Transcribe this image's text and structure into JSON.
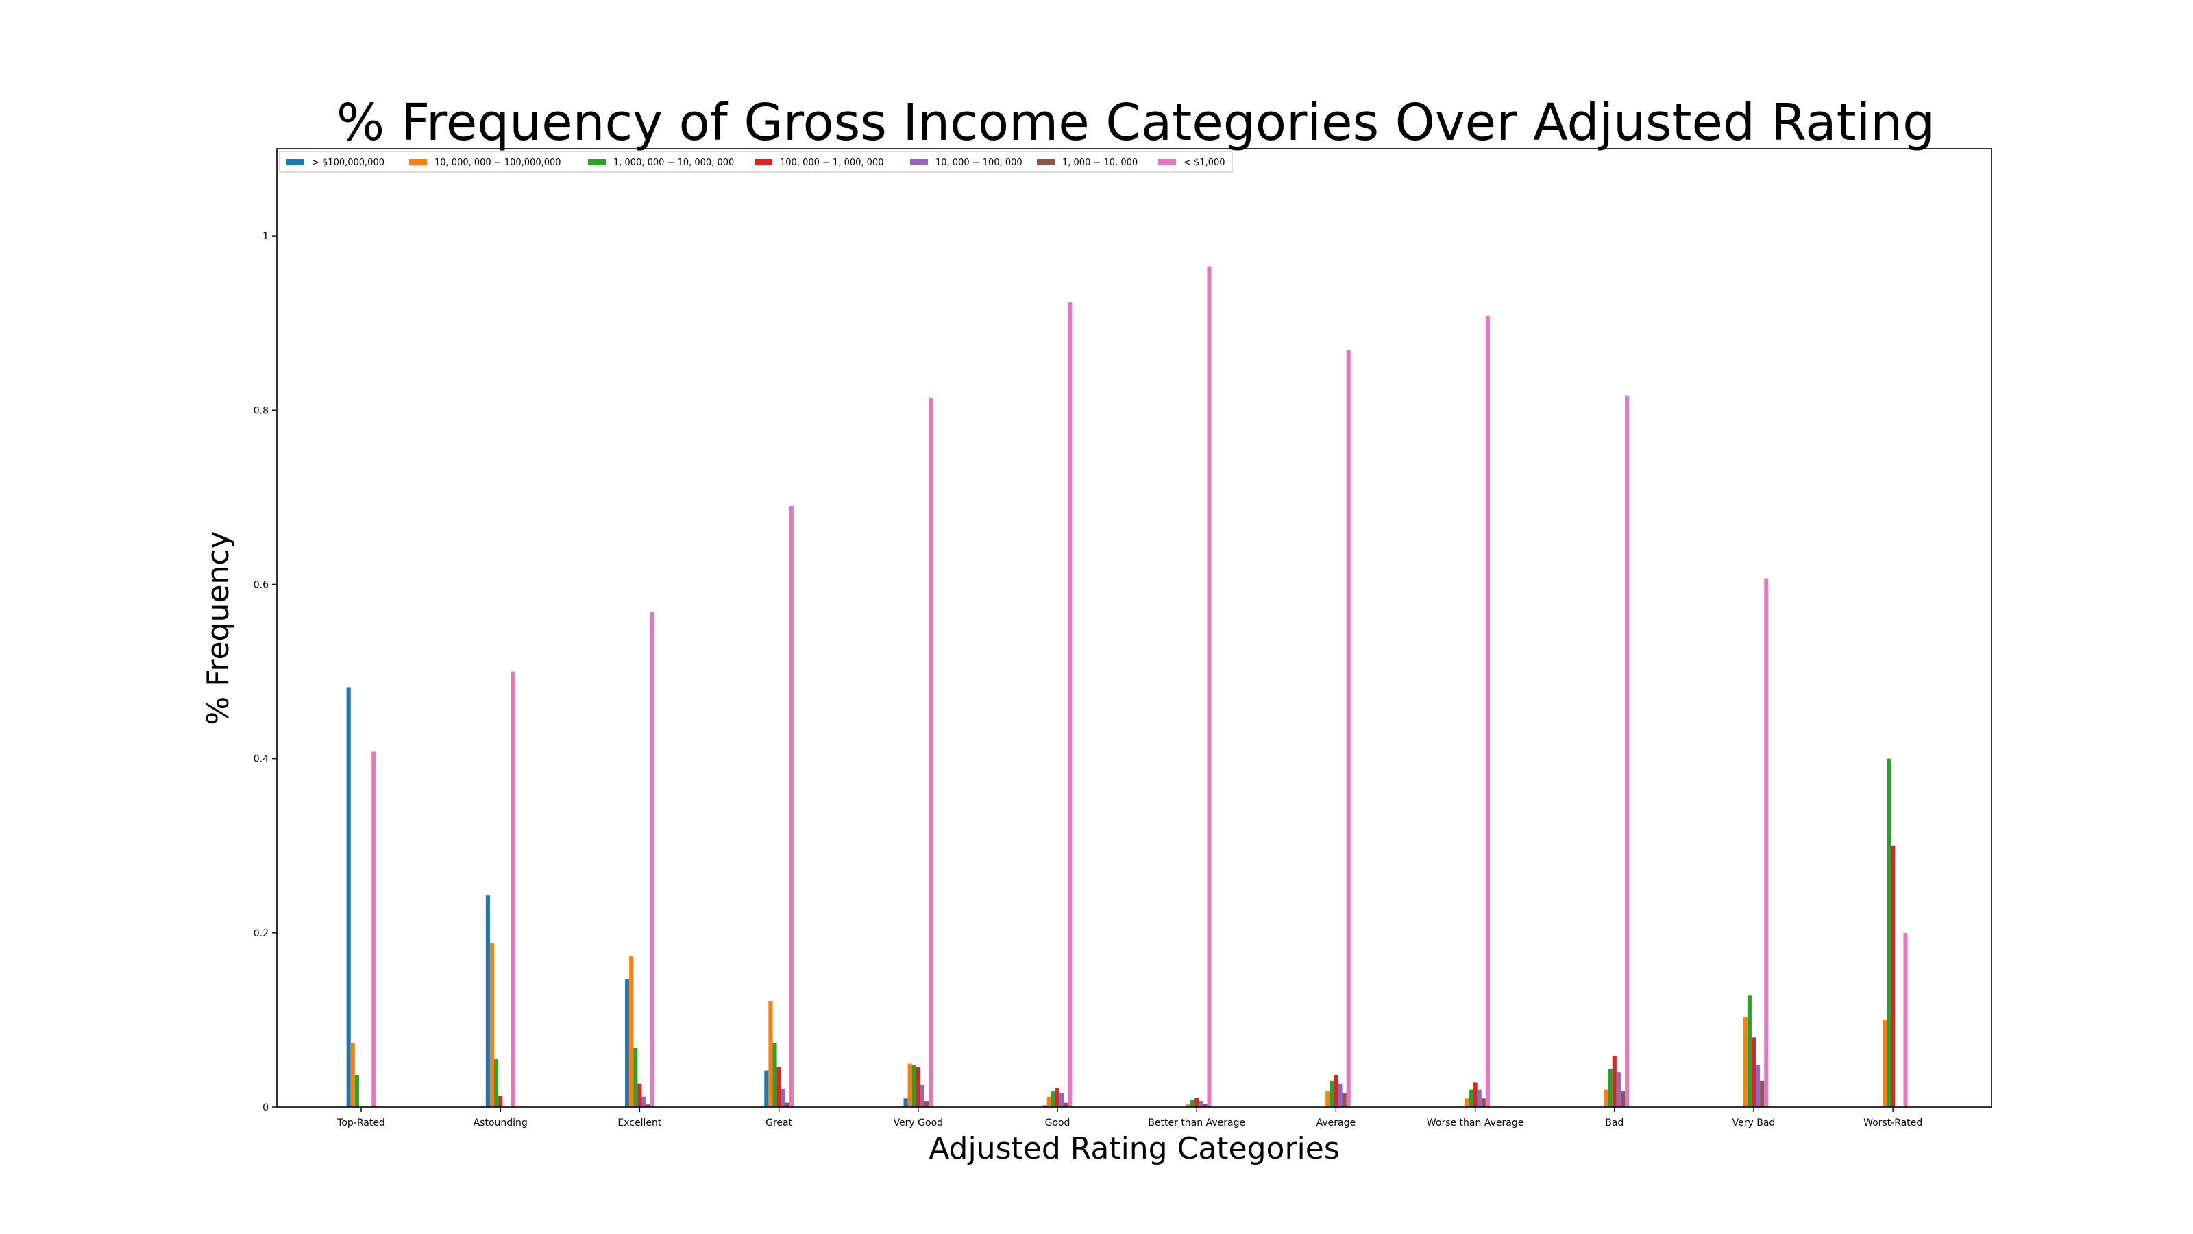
{
  "chart_data": {
    "type": "bar",
    "title": "% Frequency of Gross Income Categories Over Adjusted Rating",
    "xlabel": "Adjusted Rating Categories",
    "ylabel": "% Frequency",
    "ylim": [
      0,
      1.1
    ],
    "yticks": [
      {
        "value": 0,
        "label": "0"
      },
      {
        "value": 0.2,
        "label": "0.2"
      },
      {
        "value": 0.4,
        "label": "0.4"
      },
      {
        "value": 0.6,
        "label": "0.6"
      },
      {
        "value": 0.8,
        "label": "0.8"
      },
      {
        "value": 1,
        "label": "1"
      }
    ],
    "grid": false,
    "legend_position": "top-left",
    "categories": [
      "Top-Rated",
      "Astounding",
      "Excellent",
      "Great",
      "Very Good",
      "Good",
      "Better than Average",
      "Average",
      "Worse than Average",
      "Bad",
      "Very Bad",
      "Worst-Rated"
    ],
    "series": [
      {
        "name": "> $100,000,000",
        "color": "#1f77b4",
        "values": [
          0.482,
          0.243,
          0.147,
          0.042,
          0.01,
          0.002,
          0.0,
          0.0,
          0.0,
          0.0,
          0.0,
          0.0
        ]
      },
      {
        "name": "10, 000, 000 − 100,000,000",
        "color": "#ff7f0e",
        "values": [
          0.074,
          0.188,
          0.173,
          0.122,
          0.05,
          0.012,
          0.003,
          0.018,
          0.01,
          0.02,
          0.103,
          0.1
        ]
      },
      {
        "name": "1, 000, 000 − 10, 000, 000",
        "color": "#2ca02c",
        "values": [
          0.037,
          0.055,
          0.068,
          0.074,
          0.048,
          0.018,
          0.008,
          0.03,
          0.02,
          0.044,
          0.128,
          0.4
        ]
      },
      {
        "name": "100, 000 − 1, 000, 000",
        "color": "#d62728",
        "values": [
          0.0,
          0.013,
          0.027,
          0.046,
          0.046,
          0.022,
          0.011,
          0.037,
          0.028,
          0.059,
          0.08,
          0.3
        ]
      },
      {
        "name": "10, 000 − 100, 000",
        "color": "#9467bd",
        "values": [
          0.0,
          0.0,
          0.012,
          0.021,
          0.026,
          0.016,
          0.007,
          0.027,
          0.02,
          0.04,
          0.048,
          0.0
        ]
      },
      {
        "name": "1, 000 − 10, 000",
        "color": "#8c564b",
        "values": [
          0.0,
          0.0,
          0.003,
          0.005,
          0.007,
          0.005,
          0.004,
          0.016,
          0.01,
          0.018,
          0.03,
          0.0
        ]
      },
      {
        "name": "< $1,000",
        "color": "#e377c2",
        "values": [
          0.408,
          0.5,
          0.569,
          0.69,
          0.814,
          0.924,
          0.965,
          0.869,
          0.908,
          0.817,
          0.607,
          0.2
        ]
      }
    ]
  }
}
